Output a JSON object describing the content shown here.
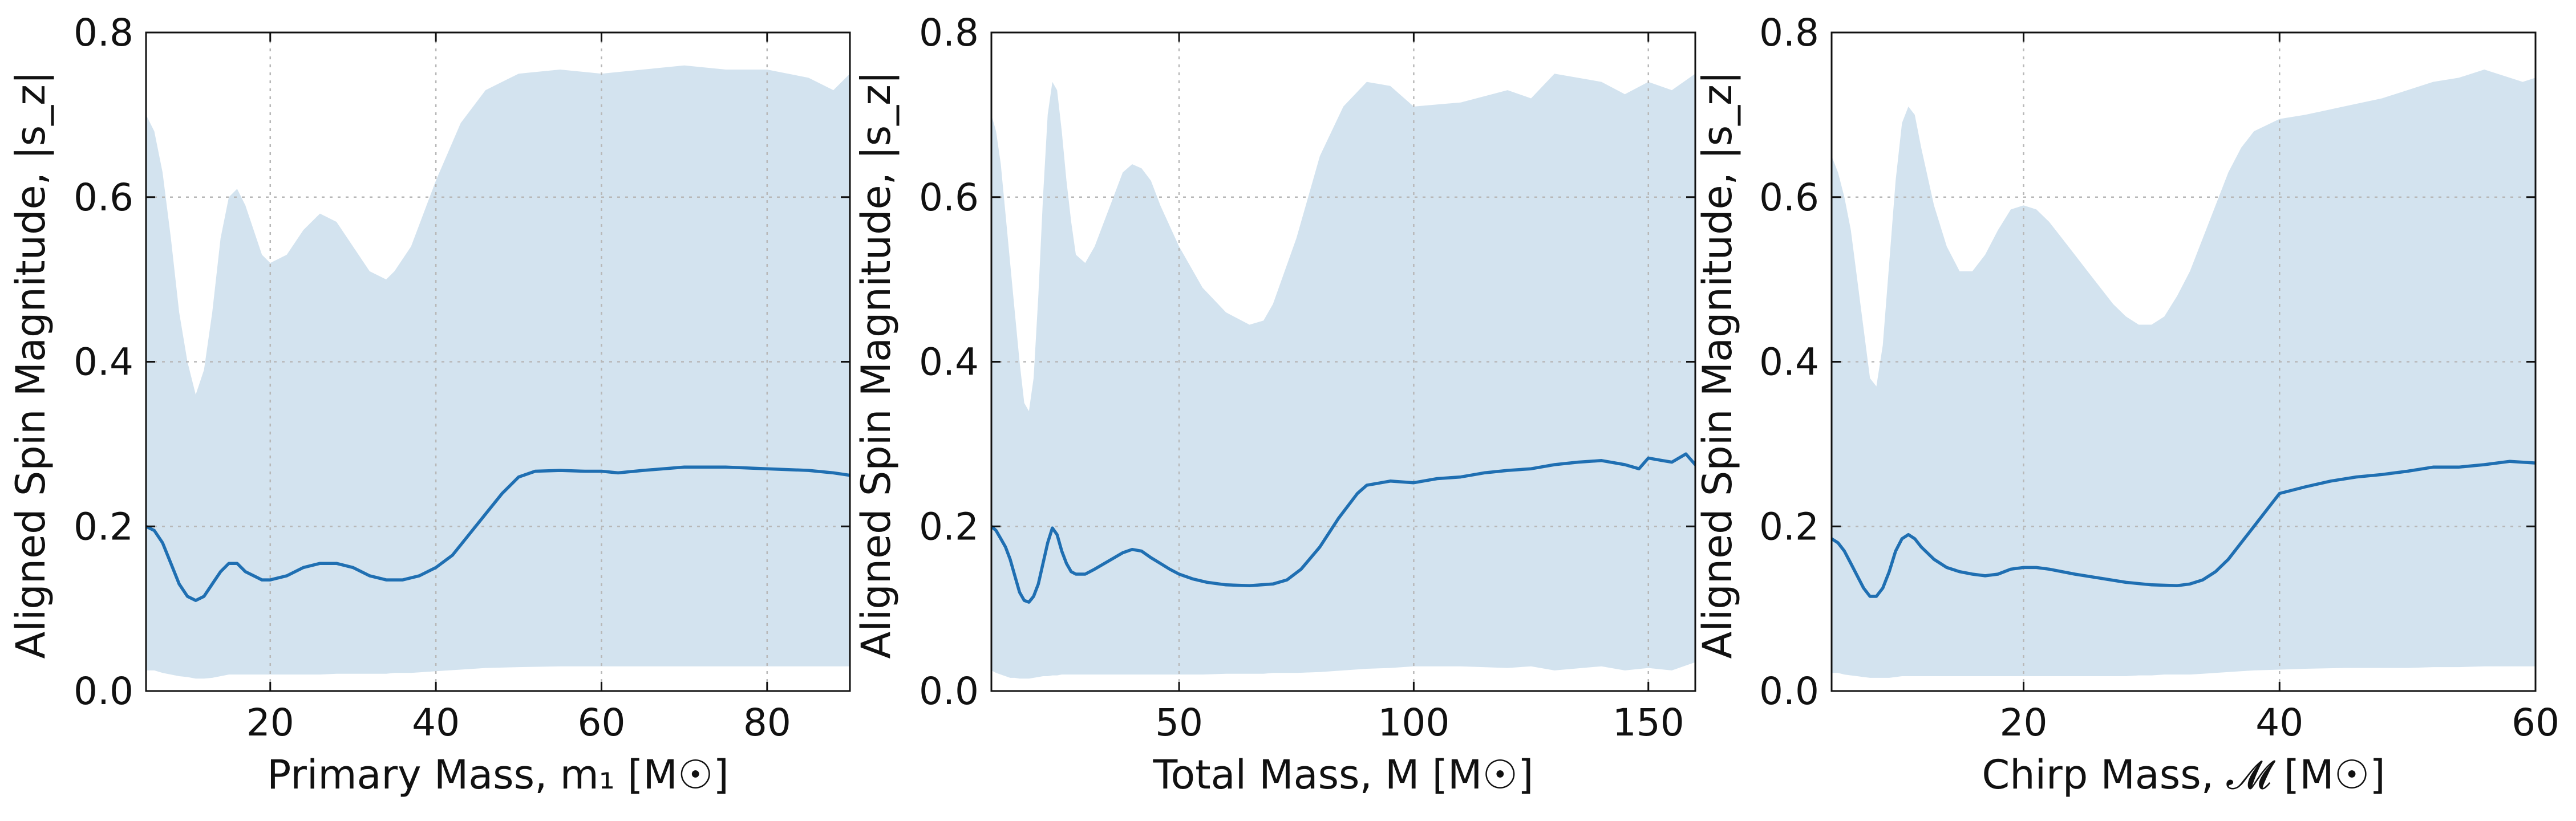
{
  "colors": {
    "band": "#d3e3ef",
    "median": "#1f6fb2",
    "frame": "#111111",
    "grid": "#b8b8b8"
  },
  "chart_data": [
    {
      "type": "area",
      "xlabel": "Primary Mass, m₁ [M☉]",
      "ylabel": "Aligned Spin Magnitude, |s_z|",
      "xlim": [
        5,
        90
      ],
      "ylim": [
        0,
        0.8
      ],
      "xticks": [
        20,
        40,
        60,
        80
      ],
      "yticks": [
        0.0,
        0.2,
        0.4,
        0.6,
        0.8
      ],
      "grid": true,
      "series": [
        {
          "role": "band",
          "x": [
            5,
            6,
            7,
            8,
            9,
            10,
            11,
            12,
            13,
            14,
            15,
            16,
            17,
            18,
            19,
            20,
            22,
            24,
            26,
            28,
            30,
            32,
            34,
            35,
            37,
            40,
            43,
            46,
            50,
            55,
            60,
            65,
            70,
            75,
            80,
            85,
            88,
            90
          ],
          "upper": [
            0.7,
            0.68,
            0.63,
            0.55,
            0.46,
            0.4,
            0.36,
            0.39,
            0.46,
            0.55,
            0.6,
            0.61,
            0.59,
            0.56,
            0.53,
            0.52,
            0.53,
            0.56,
            0.58,
            0.57,
            0.54,
            0.51,
            0.5,
            0.51,
            0.54,
            0.62,
            0.69,
            0.73,
            0.75,
            0.755,
            0.75,
            0.755,
            0.76,
            0.755,
            0.755,
            0.745,
            0.73,
            0.75
          ],
          "lower": [
            0.025,
            0.025,
            0.022,
            0.02,
            0.018,
            0.017,
            0.015,
            0.015,
            0.016,
            0.018,
            0.02,
            0.02,
            0.02,
            0.02,
            0.02,
            0.02,
            0.02,
            0.02,
            0.02,
            0.021,
            0.021,
            0.021,
            0.021,
            0.022,
            0.022,
            0.024,
            0.026,
            0.028,
            0.029,
            0.03,
            0.03,
            0.03,
            0.03,
            0.03,
            0.03,
            0.03,
            0.03,
            0.03
          ]
        },
        {
          "role": "median",
          "x": [
            5,
            6,
            7,
            8,
            9,
            10,
            11,
            12,
            13,
            14,
            15,
            16,
            17,
            18,
            19,
            20,
            22,
            24,
            26,
            28,
            30,
            32,
            34,
            36,
            38,
            40,
            42,
            44,
            46,
            48,
            50,
            52,
            55,
            58,
            60,
            62,
            65,
            70,
            75,
            80,
            85,
            88,
            90
          ],
          "y": [
            0.2,
            0.195,
            0.18,
            0.155,
            0.13,
            0.115,
            0.11,
            0.115,
            0.13,
            0.145,
            0.155,
            0.155,
            0.145,
            0.14,
            0.135,
            0.135,
            0.14,
            0.15,
            0.155,
            0.155,
            0.15,
            0.14,
            0.135,
            0.135,
            0.14,
            0.15,
            0.165,
            0.19,
            0.215,
            0.24,
            0.26,
            0.267,
            0.268,
            0.267,
            0.267,
            0.265,
            0.268,
            0.272,
            0.272,
            0.27,
            0.268,
            0.265,
            0.262
          ]
        }
      ]
    },
    {
      "type": "area",
      "xlabel": "Total Mass, M [M☉]",
      "ylabel": "Aligned Spin Magnitude, |s_z|",
      "xlim": [
        10,
        160
      ],
      "ylim": [
        0,
        0.8
      ],
      "xticks": [
        50,
        100,
        150
      ],
      "yticks": [
        0.0,
        0.2,
        0.4,
        0.6,
        0.8
      ],
      "grid": true,
      "series": [
        {
          "role": "band",
          "x": [
            10,
            11,
            12,
            13,
            14,
            15,
            16,
            17,
            18,
            19,
            20,
            21,
            22,
            23,
            24,
            25,
            26,
            27,
            28,
            30,
            32,
            34,
            36,
            38,
            40,
            42,
            44,
            46,
            48,
            50,
            55,
            60,
            65,
            68,
            70,
            75,
            80,
            85,
            90,
            95,
            100,
            110,
            120,
            125,
            130,
            140,
            145,
            150,
            155,
            160
          ],
          "upper": [
            0.7,
            0.68,
            0.64,
            0.58,
            0.52,
            0.46,
            0.4,
            0.35,
            0.34,
            0.38,
            0.48,
            0.6,
            0.7,
            0.74,
            0.73,
            0.68,
            0.62,
            0.57,
            0.53,
            0.52,
            0.54,
            0.57,
            0.6,
            0.63,
            0.64,
            0.635,
            0.62,
            0.59,
            0.565,
            0.54,
            0.49,
            0.46,
            0.445,
            0.45,
            0.47,
            0.55,
            0.65,
            0.71,
            0.74,
            0.735,
            0.71,
            0.715,
            0.73,
            0.72,
            0.75,
            0.74,
            0.725,
            0.74,
            0.73,
            0.75
          ],
          "lower": [
            0.025,
            0.022,
            0.02,
            0.018,
            0.016,
            0.016,
            0.015,
            0.015,
            0.015,
            0.016,
            0.017,
            0.018,
            0.018,
            0.019,
            0.019,
            0.02,
            0.02,
            0.02,
            0.02,
            0.02,
            0.02,
            0.02,
            0.02,
            0.02,
            0.02,
            0.02,
            0.02,
            0.02,
            0.02,
            0.02,
            0.02,
            0.021,
            0.021,
            0.021,
            0.022,
            0.022,
            0.023,
            0.025,
            0.027,
            0.028,
            0.03,
            0.03,
            0.028,
            0.03,
            0.025,
            0.03,
            0.025,
            0.028,
            0.025,
            0.035
          ]
        },
        {
          "role": "median",
          "x": [
            10,
            11,
            12,
            13,
            14,
            15,
            16,
            17,
            18,
            19,
            20,
            21,
            22,
            23,
            24,
            25,
            26,
            27,
            28,
            30,
            32,
            35,
            38,
            40,
            42,
            44,
            46,
            48,
            50,
            53,
            56,
            60,
            65,
            70,
            73,
            76,
            80,
            84,
            88,
            90,
            95,
            100,
            105,
            110,
            115,
            120,
            125,
            130,
            135,
            140,
            145,
            148,
            150,
            153,
            155,
            158,
            160
          ],
          "y": [
            0.2,
            0.195,
            0.185,
            0.175,
            0.16,
            0.14,
            0.12,
            0.11,
            0.108,
            0.115,
            0.13,
            0.155,
            0.18,
            0.198,
            0.19,
            0.17,
            0.155,
            0.145,
            0.142,
            0.142,
            0.148,
            0.158,
            0.168,
            0.172,
            0.17,
            0.162,
            0.155,
            0.148,
            0.142,
            0.136,
            0.132,
            0.129,
            0.128,
            0.13,
            0.135,
            0.148,
            0.175,
            0.21,
            0.24,
            0.25,
            0.255,
            0.253,
            0.258,
            0.26,
            0.265,
            0.268,
            0.27,
            0.275,
            0.278,
            0.28,
            0.275,
            0.27,
            0.283,
            0.28,
            0.278,
            0.288,
            0.275
          ]
        }
      ]
    },
    {
      "type": "area",
      "xlabel": "Chirp Mass, 𝓜 [M☉]",
      "ylabel": "Aligned Spin Magnitude, |s_z|",
      "xlim": [
        5,
        60
      ],
      "ylim": [
        0,
        0.8
      ],
      "xticks": [
        20,
        40,
        60
      ],
      "yticks": [
        0.0,
        0.2,
        0.4,
        0.6,
        0.8
      ],
      "grid": true,
      "series": [
        {
          "role": "band",
          "x": [
            5,
            5.5,
            6,
            6.5,
            7,
            7.5,
            8,
            8.5,
            9,
            9.5,
            10,
            10.5,
            11,
            11.5,
            12,
            13,
            14,
            15,
            16,
            17,
            18,
            19,
            20,
            21,
            22,
            23,
            24,
            25,
            26,
            27,
            28,
            29,
            30,
            31,
            32,
            33,
            34,
            35,
            36,
            37,
            38,
            40,
            42,
            45,
            48,
            50,
            52,
            54,
            56,
            58,
            59,
            60
          ],
          "upper": [
            0.65,
            0.63,
            0.6,
            0.56,
            0.5,
            0.44,
            0.38,
            0.37,
            0.42,
            0.52,
            0.62,
            0.69,
            0.71,
            0.7,
            0.66,
            0.59,
            0.54,
            0.51,
            0.51,
            0.53,
            0.56,
            0.585,
            0.59,
            0.585,
            0.57,
            0.55,
            0.53,
            0.51,
            0.49,
            0.47,
            0.455,
            0.445,
            0.445,
            0.455,
            0.48,
            0.51,
            0.55,
            0.59,
            0.63,
            0.66,
            0.68,
            0.695,
            0.7,
            0.71,
            0.72,
            0.73,
            0.74,
            0.745,
            0.755,
            0.745,
            0.74,
            0.745
          ],
          "lower": [
            0.022,
            0.022,
            0.02,
            0.019,
            0.018,
            0.017,
            0.016,
            0.016,
            0.016,
            0.016,
            0.017,
            0.018,
            0.018,
            0.018,
            0.018,
            0.018,
            0.018,
            0.018,
            0.018,
            0.018,
            0.018,
            0.018,
            0.018,
            0.018,
            0.018,
            0.018,
            0.018,
            0.018,
            0.018,
            0.018,
            0.018,
            0.019,
            0.019,
            0.02,
            0.02,
            0.02,
            0.021,
            0.022,
            0.023,
            0.024,
            0.025,
            0.026,
            0.027,
            0.028,
            0.028,
            0.028,
            0.029,
            0.029,
            0.03,
            0.03,
            0.03,
            0.03
          ]
        },
        {
          "role": "median",
          "x": [
            5,
            5.5,
            6,
            6.5,
            7,
            7.5,
            8,
            8.5,
            9,
            9.5,
            10,
            10.5,
            11,
            11.5,
            12,
            13,
            14,
            15,
            16,
            17,
            18,
            19,
            20,
            21,
            22,
            24,
            26,
            28,
            30,
            32,
            33,
            34,
            35,
            36,
            37,
            38,
            39,
            40,
            42,
            44,
            46,
            48,
            50,
            52,
            54,
            56,
            58,
            60
          ],
          "y": [
            0.185,
            0.18,
            0.17,
            0.155,
            0.14,
            0.125,
            0.115,
            0.115,
            0.125,
            0.145,
            0.17,
            0.185,
            0.19,
            0.185,
            0.175,
            0.16,
            0.15,
            0.145,
            0.142,
            0.14,
            0.142,
            0.148,
            0.15,
            0.15,
            0.148,
            0.142,
            0.137,
            0.132,
            0.129,
            0.128,
            0.13,
            0.135,
            0.145,
            0.16,
            0.18,
            0.2,
            0.22,
            0.24,
            0.248,
            0.255,
            0.26,
            0.263,
            0.267,
            0.272,
            0.272,
            0.275,
            0.279,
            0.277
          ]
        }
      ]
    }
  ]
}
